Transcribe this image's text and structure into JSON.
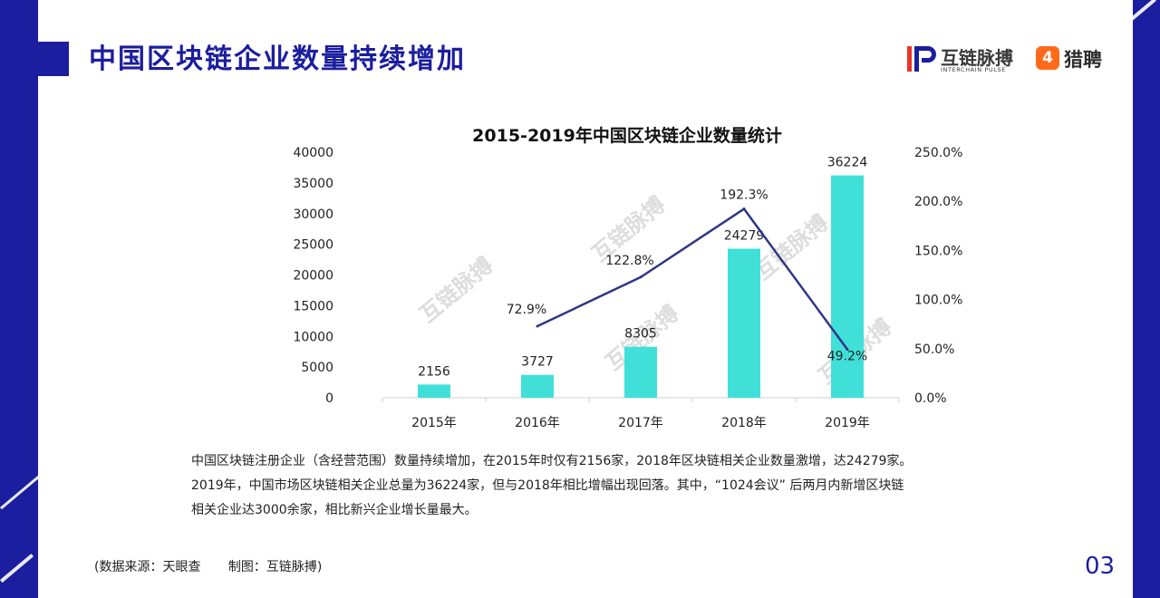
{
  "header": {
    "title": "中国区块链企业数量持续增加"
  },
  "logos": {
    "interchain": {
      "name": "互链脉搏",
      "sub": "INTERCHAIN PULSE",
      "icon": "interchain-logo-icon"
    },
    "liepin": {
      "name": "猎聘",
      "glyph": "4",
      "icon": "liepin-logo-icon"
    },
    "watermark": "互链脉搏"
  },
  "colors": {
    "brand": "#1b1e9e",
    "bar": "#40e0d9",
    "line": "#2e3686",
    "accent": "#ff6a1a"
  },
  "chart_data": {
    "type": "bar",
    "title": "2015-2019年中国区块链企业数量统计",
    "categories": [
      "2015年",
      "2016年",
      "2017年",
      "2018年",
      "2019年"
    ],
    "series": [
      {
        "values": [
          2156,
          3727,
          8305,
          24279,
          36224
        ],
        "axis": "left",
        "mark": "bar"
      },
      {
        "values": [
          null,
          72.9,
          122.8,
          192.3,
          49.2
        ],
        "axis": "right",
        "mark": "line"
      }
    ],
    "value_labels": [
      "2156",
      "3727",
      "8305",
      "24279",
      "36224"
    ],
    "growth_labels": [
      "",
      "72.9%",
      "122.8%",
      "192.3%",
      "49.2%"
    ],
    "ylim": [
      0,
      40000
    ],
    "y_ticks": [
      "0",
      "5000",
      "10000",
      "15000",
      "20000",
      "25000",
      "30000",
      "35000",
      "40000"
    ],
    "y2lim": [
      0,
      250
    ],
    "y2_ticks": [
      "0.0%",
      "50.0%",
      "100.0%",
      "150.0%",
      "200.0%",
      "250.0%"
    ],
    "grid": false,
    "legend": "none"
  },
  "description": {
    "lines": [
      "中国区块链注册企业（含经营范围）数量持续增加，在2015年时仅有2156家，2018年区块链相关企业数量激增，达24279家。",
      "2019年，中国市场区块链相关企业总量为36224家，但与2018年相比增幅出现回落。其中，“1024会议” 后两月内新增区块链",
      "相关企业达3000余家，相比新兴企业增长量最大。"
    ]
  },
  "footer": {
    "source": "(数据来源：天眼查",
    "maker": "制图：互链脉搏)",
    "page_number": "03"
  }
}
